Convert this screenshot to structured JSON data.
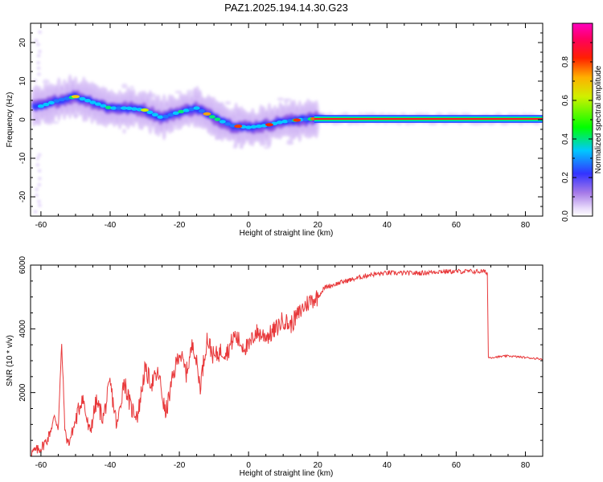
{
  "title": "PAZ1.2025.194.14.30.G23",
  "chart_data": [
    {
      "type": "heatmap",
      "xlabel": "Height of straight line (km)",
      "ylabel": "Frequency (Hz)",
      "xlim": [
        -63,
        85
      ],
      "ylim": [
        -25,
        25
      ],
      "x_ticks": [
        -60,
        -40,
        -20,
        0,
        20,
        40,
        60,
        80
      ],
      "x_tick_labels": [
        "-60",
        "-40",
        "-20",
        "0",
        "20",
        "40",
        "60",
        "80"
      ],
      "y_ticks": [
        -20,
        -10,
        0,
        10,
        20
      ],
      "y_tick_labels": [
        "-20",
        "-10",
        "0",
        "10",
        "20"
      ],
      "ridge": {
        "x": [
          -60,
          -55,
          -50,
          -45,
          -40,
          -35,
          -30,
          -25,
          -20,
          -15,
          -10,
          -5,
          0,
          5,
          10,
          15,
          20,
          30,
          40,
          50,
          60,
          70,
          85
        ],
        "y": [
          3.5,
          5,
          6,
          4.5,
          3,
          3,
          2.5,
          0.5,
          2,
          3,
          0.5,
          -1.5,
          -2,
          -1.5,
          -0.5,
          0,
          0.3,
          0.2,
          0.2,
          0.2,
          0.2,
          0.2,
          0.2
        ]
      },
      "colorbar": {
        "label": "Normalized spectral amplitude",
        "range": [
          0,
          1
        ],
        "ticks": [
          0.0,
          0.2,
          0.4,
          0.6,
          0.8
        ],
        "tick_labels": [
          "0.0",
          "0.2",
          "0.4",
          "0.6",
          "0.8"
        ],
        "colormap": "rainbow (purple → blue → cyan → green → yellow → red → magenta)"
      }
    },
    {
      "type": "line",
      "xlabel": "Height of straight line (km)",
      "ylabel": "SNR (10 * v/v)",
      "xlim": [
        -63,
        85
      ],
      "ylim": [
        0,
        6000
      ],
      "x_ticks": [
        -60,
        -40,
        -20,
        0,
        20,
        40,
        60,
        80
      ],
      "x_tick_labels": [
        "-60",
        "-40",
        "-20",
        "0",
        "20",
        "40",
        "60",
        "80"
      ],
      "y_ticks": [
        2000,
        4000,
        6000
      ],
      "y_tick_labels": [
        "2000",
        "4000",
        "6000"
      ],
      "line_color": "#e8383a",
      "x": [
        -63,
        -60,
        -58,
        -56,
        -55,
        -54,
        -53,
        -52,
        -50,
        -48,
        -46,
        -44,
        -42,
        -40,
        -38,
        -36,
        -34,
        -32,
        -30,
        -28,
        -26,
        -24,
        -22,
        -20,
        -18,
        -16,
        -14,
        -12,
        -10,
        -8,
        -6,
        -4,
        -2,
        0,
        2,
        4,
        6,
        8,
        10,
        12,
        14,
        16,
        18,
        20,
        22,
        25,
        28,
        30,
        35,
        40,
        45,
        50,
        55,
        60,
        65,
        68,
        69,
        69.3,
        70,
        75,
        80,
        85
      ],
      "y": [
        100,
        250,
        550,
        1250,
        900,
        3500,
        700,
        400,
        1100,
        1900,
        700,
        1700,
        1200,
        2300,
        900,
        2400,
        1500,
        1300,
        2700,
        2300,
        2600,
        1300,
        2400,
        3300,
        2600,
        3600,
        2200,
        3700,
        3100,
        3300,
        3300,
        3800,
        3500,
        3400,
        3900,
        3800,
        3800,
        4000,
        4300,
        4100,
        4400,
        4700,
        4900,
        5000,
        5300,
        5400,
        5500,
        5550,
        5700,
        5750,
        5750,
        5750,
        5800,
        5800,
        5800,
        5800,
        5750,
        3100,
        3100,
        3150,
        3100,
        3050
      ]
    }
  ]
}
